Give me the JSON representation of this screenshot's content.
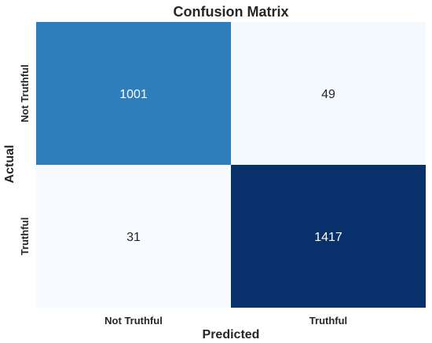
{
  "chart_data": {
    "type": "heatmap",
    "title": "Confusion Matrix",
    "xlabel": "Predicted",
    "ylabel": "Actual",
    "x_categories": [
      "Not Truthful",
      "Truthful"
    ],
    "y_categories": [
      "Not Truthful",
      "Truthful"
    ],
    "values": [
      [
        1001,
        49
      ],
      [
        31,
        1417
      ]
    ],
    "colormap": "Blues",
    "colorbar": false,
    "grid": false
  }
}
